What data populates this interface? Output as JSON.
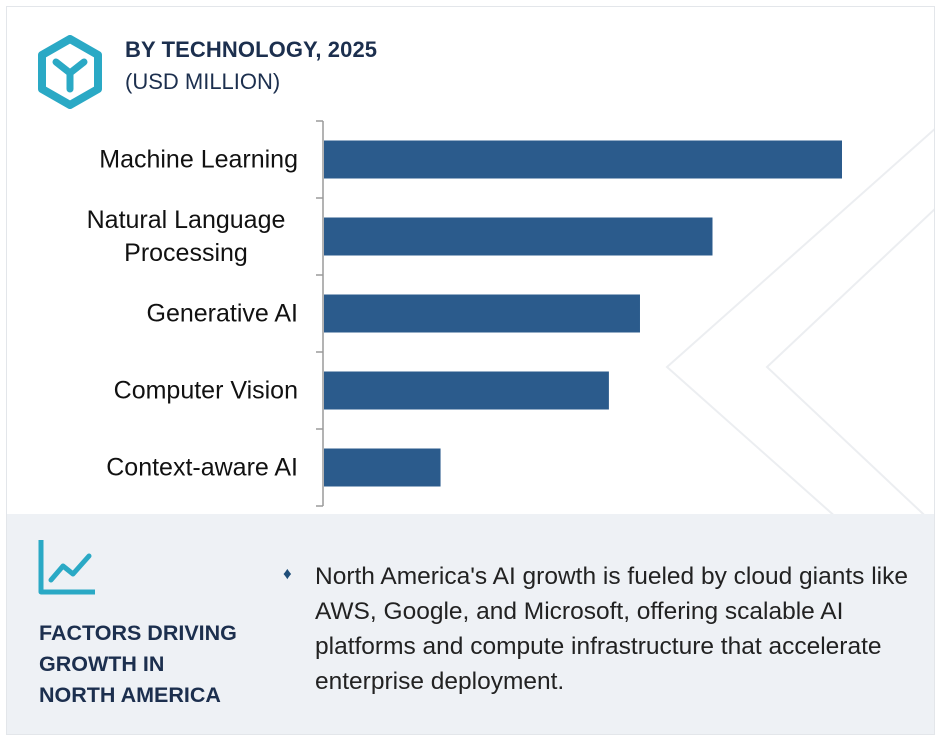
{
  "header": {
    "title": "BY TECHNOLOGY, 2025",
    "subtitle": "(USD MILLION)",
    "icon": "hexagon-y-icon"
  },
  "chart_data": {
    "type": "bar",
    "orientation": "horizontal",
    "title": "BY TECHNOLOGY, 2025",
    "subtitle": "(USD MILLION)",
    "categories": [
      [
        "Machine Learning"
      ],
      [
        "Natural Language",
        "Processing"
      ],
      [
        "Generative AI"
      ],
      [
        "Computer Vision"
      ],
      [
        "Context-aware AI"
      ]
    ],
    "values": [
      100,
      75,
      61,
      55,
      22.5
    ],
    "value_axis_shown": false,
    "grid": false,
    "legend": "none",
    "bar_color": "#2b5b8c"
  },
  "factors": {
    "icon": "line-chart-icon",
    "title": [
      "FACTORS DRIVING",
      "GROWTH IN",
      "NORTH AMERICA"
    ],
    "bullet_icon": "diamond-bullet-icon",
    "text": "North America's AI growth is fueled by cloud giants like AWS, Google, and Microsoft, offering scalable AI platforms and compute infrastructure that accelerate enterprise deployment."
  },
  "colors": {
    "navy": "#1c2f4e",
    "bar": "#2b5b8c",
    "teal": "#2aa9c5",
    "panel": "#eef1f5"
  }
}
